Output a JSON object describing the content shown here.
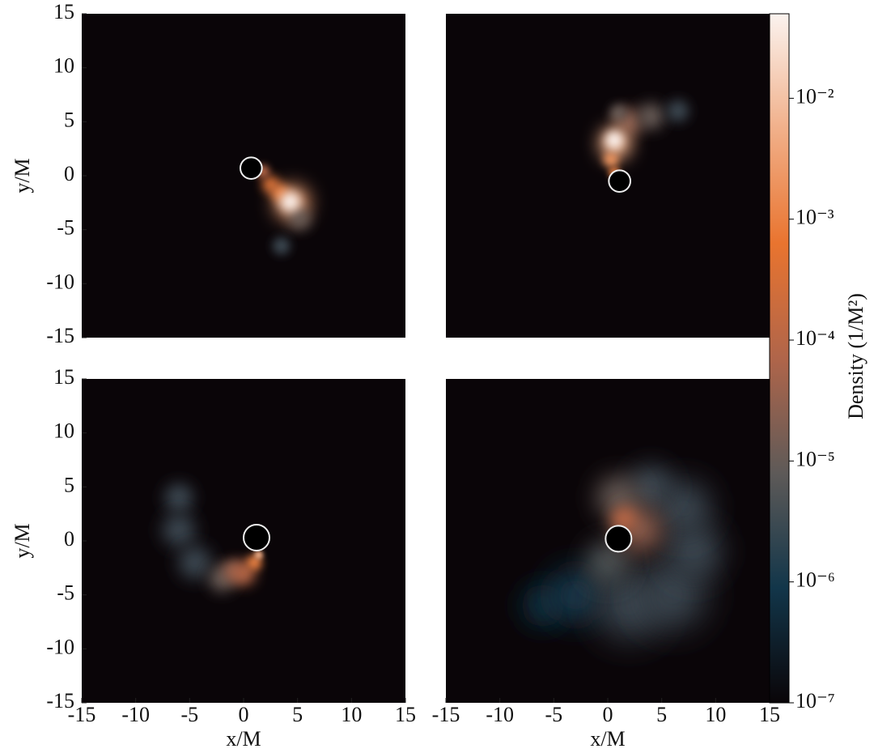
{
  "chart_data": [
    {
      "type": "density",
      "ylabel": "y/M",
      "xlim": [
        -15,
        15
      ],
      "ylim": [
        -15,
        15
      ],
      "yticks": [
        -15,
        -10,
        -5,
        0,
        5,
        10,
        15
      ],
      "markers": [
        {
          "x": 0.7,
          "y": 0.7,
          "r": 1.0
        }
      ],
      "blobs": [
        {
          "x": 4.5,
          "y": -2.5,
          "size": 1.6,
          "density": 0.003
        },
        {
          "x": 2.5,
          "y": -0.8,
          "size": 0.8,
          "density": 0.0003
        },
        {
          "x": 3.4,
          "y": -1.6,
          "size": 0.8,
          "density": 0.001
        },
        {
          "x": 1.8,
          "y": 0.4,
          "size": 0.6,
          "density": 0.0001
        },
        {
          "x": 5.2,
          "y": -4,
          "size": 1.0,
          "density": 1e-05
        },
        {
          "x": 3.5,
          "y": -6.5,
          "size": 0.8,
          "density": 3e-06
        },
        {
          "x": 4.3,
          "y": -2.4,
          "size": 0.9,
          "density": 0.05
        }
      ]
    },
    {
      "type": "density",
      "xlim": [
        -15,
        15
      ],
      "ylim": [
        -15,
        15
      ],
      "markers": [
        {
          "x": 1.1,
          "y": -0.5,
          "r": 1.0
        }
      ],
      "blobs": [
        {
          "x": 2,
          "y": 5,
          "size": 1.2,
          "density": 3e-05
        },
        {
          "x": 4,
          "y": 5.5,
          "size": 1.2,
          "density": 1e-05
        },
        {
          "x": 6.5,
          "y": 6,
          "size": 1.0,
          "density": 3e-06
        },
        {
          "x": 1,
          "y": 5.8,
          "size": 0.8,
          "density": 1e-05
        },
        {
          "x": 0.7,
          "y": 3,
          "size": 1.5,
          "density": 0.005
        },
        {
          "x": 0.3,
          "y": 1.5,
          "size": 0.7,
          "density": 0.002
        },
        {
          "x": 0.6,
          "y": 0.3,
          "size": 0.5,
          "density": 0.001
        },
        {
          "x": 0.6,
          "y": 3.3,
          "size": 0.8,
          "density": 0.05
        }
      ]
    },
    {
      "type": "density",
      "xlabel": "x/M",
      "ylabel": "y/M",
      "xlim": [
        -15,
        15
      ],
      "ylim": [
        -15,
        15
      ],
      "xticks": [
        -15,
        -10,
        -5,
        0,
        5,
        10,
        15
      ],
      "yticks": [
        -15,
        -10,
        -5,
        0,
        5,
        10,
        15
      ],
      "markers": [
        {
          "x": 1.2,
          "y": 0.3,
          "r": 1.2
        }
      ],
      "blobs": [
        {
          "x": -6,
          "y": 4,
          "size": 1.3,
          "density": 3e-06
        },
        {
          "x": -6,
          "y": 1,
          "size": 1.5,
          "density": 3e-06
        },
        {
          "x": -4.5,
          "y": -2,
          "size": 1.5,
          "density": 3e-06
        },
        {
          "x": -2,
          "y": -3.5,
          "size": 1.2,
          "density": 1e-05
        },
        {
          "x": -1,
          "y": -2.8,
          "size": 1.0,
          "density": 3e-05
        },
        {
          "x": 0,
          "y": -3,
          "size": 1.1,
          "density": 0.0001
        },
        {
          "x": 1,
          "y": -2,
          "size": 0.7,
          "density": 0.001
        },
        {
          "x": 1.4,
          "y": -1.3,
          "size": 0.4,
          "density": 0.005
        }
      ]
    },
    {
      "type": "density",
      "xlabel": "x/M",
      "xlim": [
        -15,
        15
      ],
      "ylim": [
        -15,
        15
      ],
      "xticks": [
        -15,
        -10,
        -5,
        0,
        5,
        10,
        15
      ],
      "markers": [
        {
          "x": 1.0,
          "y": 0.2,
          "r": 1.2
        }
      ],
      "blobs": [
        {
          "x": -6,
          "y": -6,
          "size": 2,
          "density": 5e-07
        },
        {
          "x": -3,
          "y": -5,
          "size": 2.5,
          "density": 1e-06
        },
        {
          "x": 2,
          "y": -6,
          "size": 3,
          "density": 3e-06
        },
        {
          "x": 6,
          "y": -5,
          "size": 3,
          "density": 3e-06
        },
        {
          "x": 8,
          "y": -1,
          "size": 2.5,
          "density": 3e-06
        },
        {
          "x": 7,
          "y": 3,
          "size": 2.5,
          "density": 3e-06
        },
        {
          "x": 4,
          "y": 5,
          "size": 2,
          "density": 3e-06
        },
        {
          "x": 1,
          "y": 4,
          "size": 2,
          "density": 1e-05
        },
        {
          "x": 0,
          "y": -2,
          "size": 2,
          "density": 5e-06
        },
        {
          "x": 3,
          "y": 1,
          "size": 2,
          "density": 3e-05
        },
        {
          "x": 1.5,
          "y": 2,
          "size": 1.2,
          "density": 0.0001
        }
      ]
    },
    {
      "type": "colorbar",
      "label": "Density (1/M²)",
      "log": true,
      "clim": [
        1e-07,
        0.05
      ],
      "colormap": [
        "#0a0508",
        "#12364a",
        "#5e5a58",
        "#b0654a",
        "#e9742f",
        "#f1b08a",
        "#fbf3ef"
      ],
      "ticks": [
        {
          "value": 1e-07,
          "label": "10⁻⁷"
        },
        {
          "value": 1e-06,
          "label": "10⁻⁶"
        },
        {
          "value": 1e-05,
          "label": "10⁻⁵"
        },
        {
          "value": 0.0001,
          "label": "10⁻⁴"
        },
        {
          "value": 0.001,
          "label": "10⁻³"
        },
        {
          "value": 0.01,
          "label": "10⁻²"
        }
      ]
    }
  ]
}
